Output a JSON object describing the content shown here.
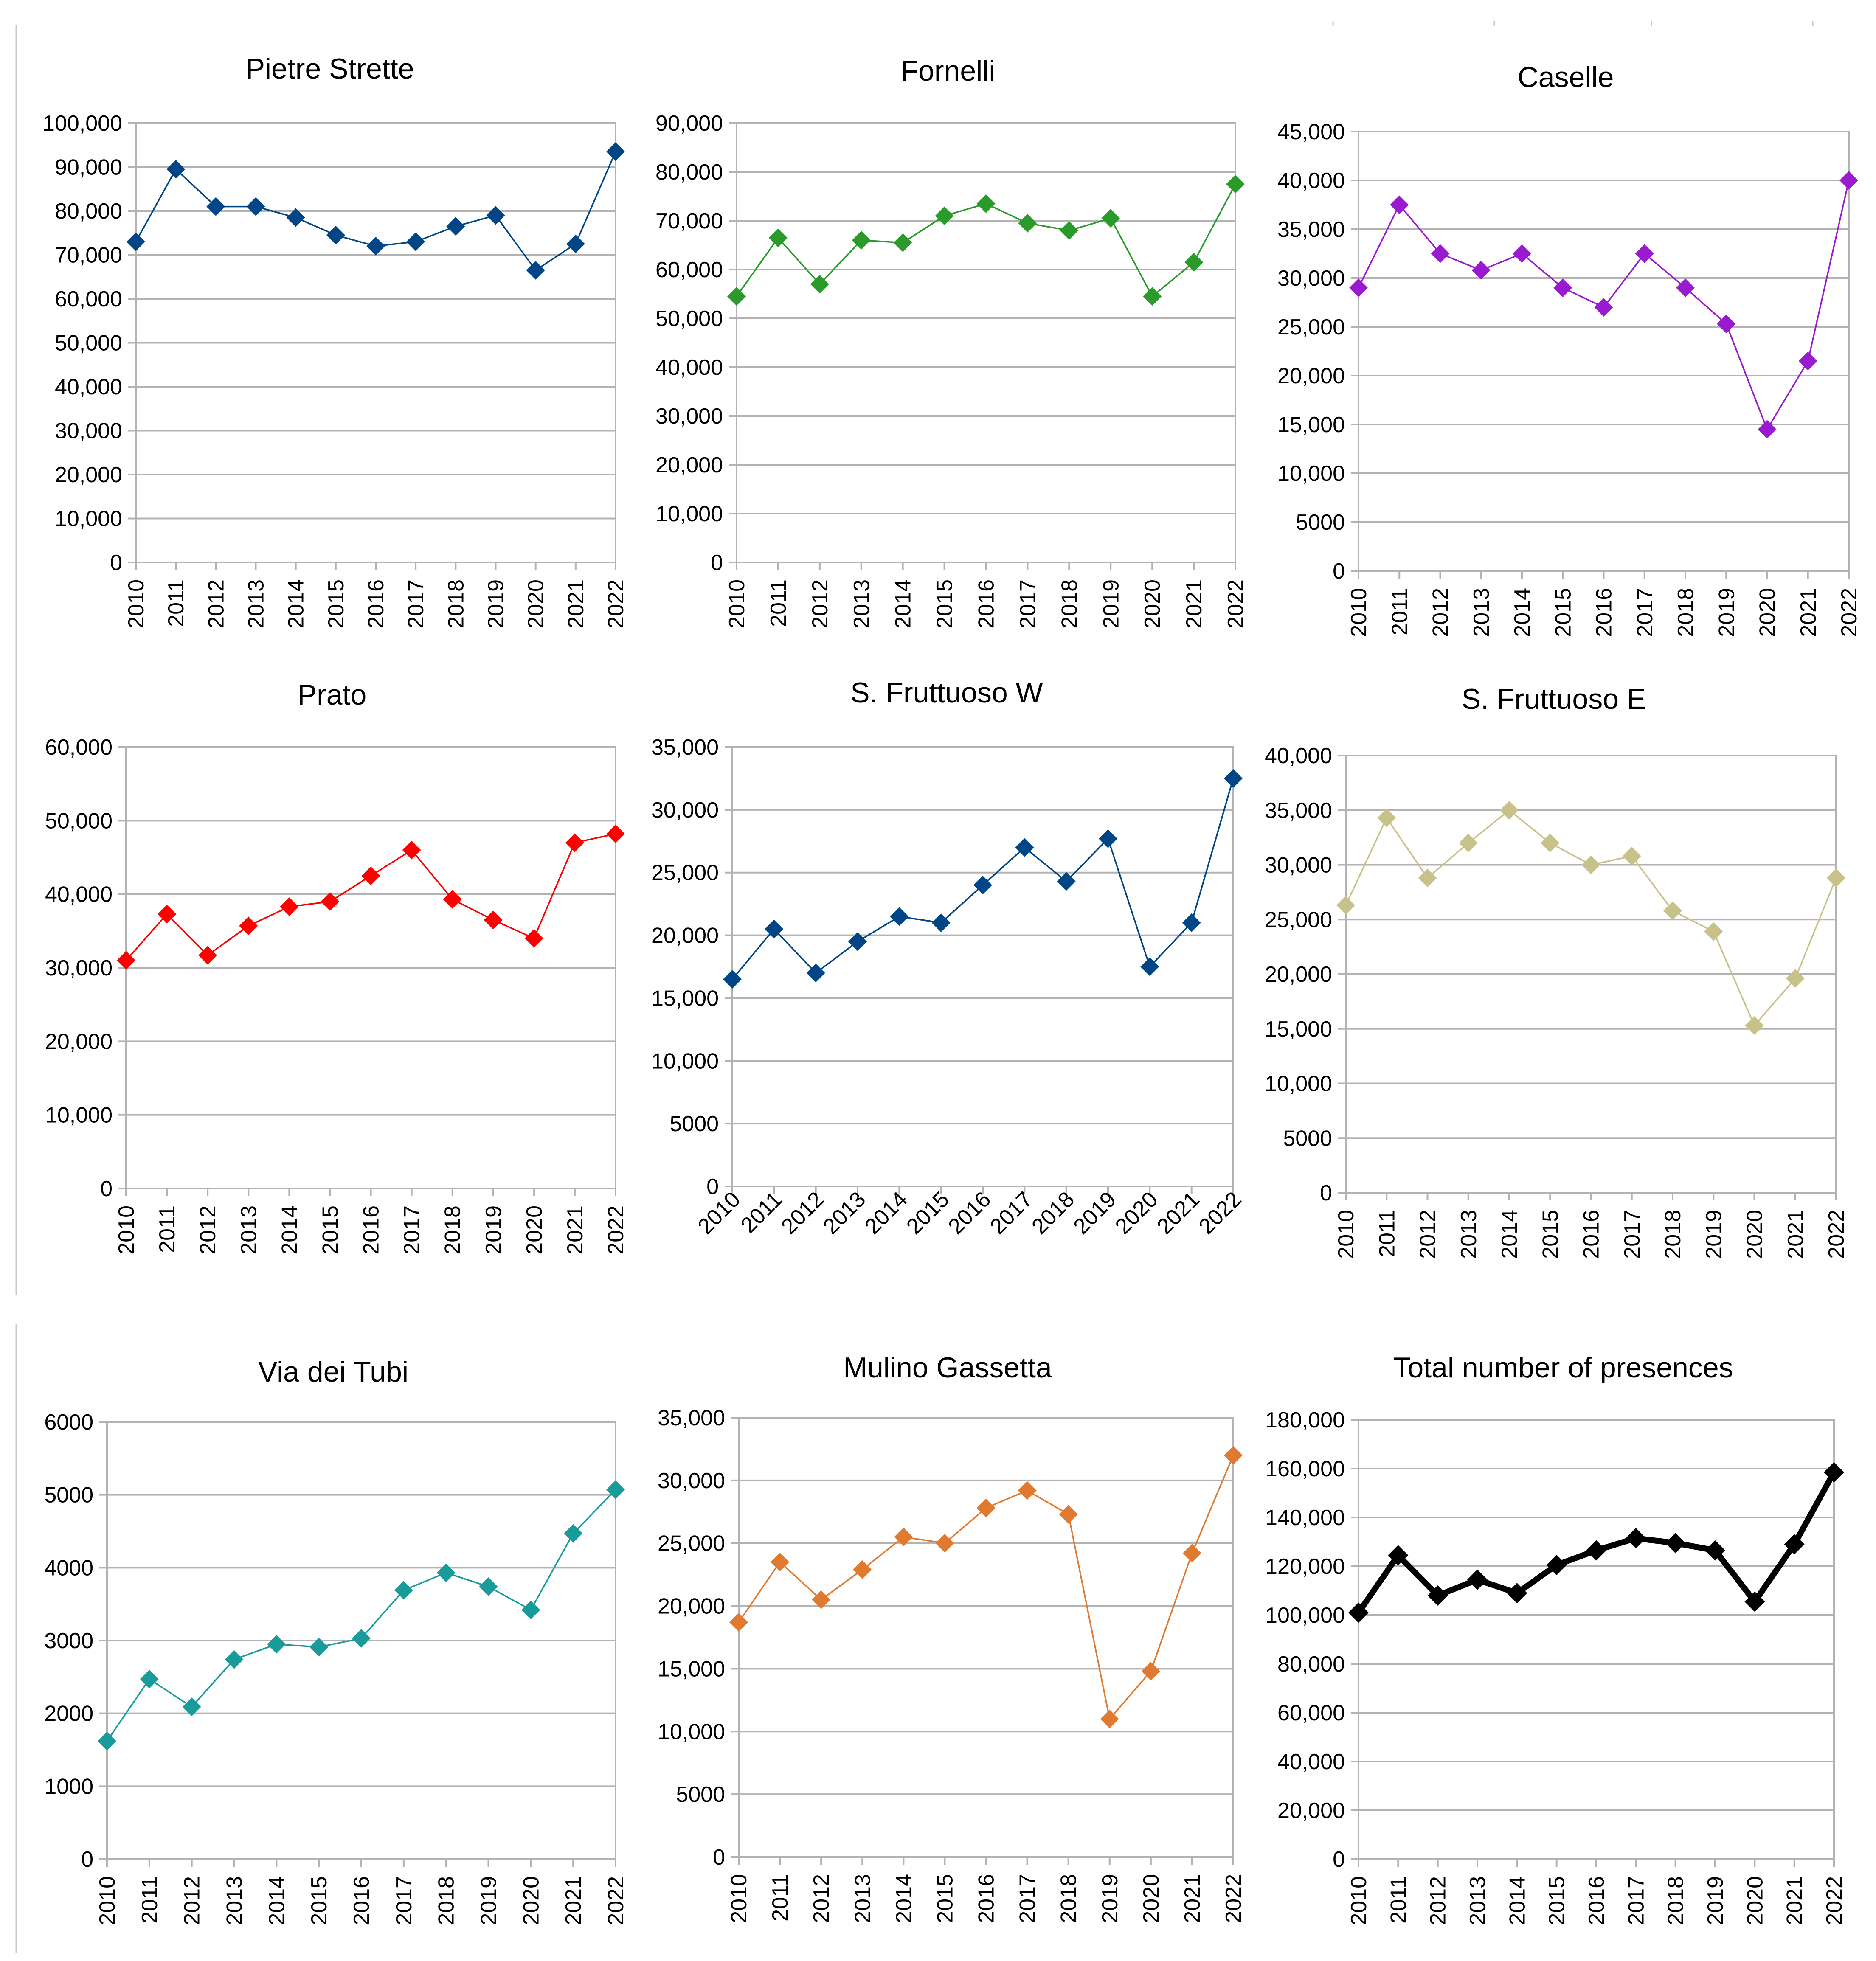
{
  "chart_data": [
    {
      "type": "line",
      "title": "Pietre Strette",
      "color": "#004586",
      "x": [
        "2010",
        "2011",
        "2012",
        "2013",
        "2014",
        "2015",
        "2016",
        "2017",
        "2018",
        "2019",
        "2020",
        "2021",
        "2022"
      ],
      "values": [
        73000,
        89500,
        81000,
        81000,
        78500,
        74500,
        72000,
        73000,
        76500,
        79000,
        66500,
        72500,
        93500
      ],
      "ylim": [
        0,
        100000
      ],
      "yticks": [
        "0",
        "10,000",
        "20,000",
        "30,000",
        "40,000",
        "50,000",
        "60,000",
        "70,000",
        "80,000",
        "90,000",
        "100,000"
      ]
    },
    {
      "type": "line",
      "title": "Fornelli",
      "color": "#2a9a2a",
      "x": [
        "2010",
        "2011",
        "2012",
        "2013",
        "2014",
        "2015",
        "2016",
        "2017",
        "2018",
        "2019",
        "2020",
        "2021",
        "2022"
      ],
      "values": [
        54500,
        66500,
        57000,
        66000,
        65500,
        71000,
        73500,
        69500,
        68000,
        70500,
        54500,
        61500,
        77500
      ],
      "ylim": [
        0,
        90000
      ],
      "yticks": [
        "0",
        "10,000",
        "20,000",
        "30,000",
        "40,000",
        "50,000",
        "60,000",
        "70,000",
        "80,000",
        "90,000"
      ]
    },
    {
      "type": "line",
      "title": "Caselle",
      "color": "#9a1ad0",
      "x": [
        "2010",
        "2011",
        "2012",
        "2013",
        "2014",
        "2015",
        "2016",
        "2017",
        "2018",
        "2019",
        "2020",
        "2021",
        "2022"
      ],
      "values": [
        29000,
        37500,
        32500,
        30800,
        32500,
        29000,
        27000,
        32500,
        29000,
        25300,
        14500,
        21500,
        40000
      ],
      "ylim": [
        0,
        45000
      ],
      "yticks": [
        "0",
        "5000",
        "10,000",
        "15,000",
        "20,000",
        "25,000",
        "30,000",
        "35,000",
        "40,000",
        "45,000"
      ]
    },
    {
      "type": "line",
      "title": "Prato",
      "color": "#ff0000",
      "x": [
        "2010",
        "2011",
        "2012",
        "2013",
        "2014",
        "2015",
        "2016",
        "2017",
        "2018",
        "2019",
        "2020",
        "2021",
        "2022"
      ],
      "values": [
        31000,
        37300,
        31700,
        35700,
        38300,
        39000,
        42500,
        46000,
        39300,
        36500,
        34000,
        47000,
        48200
      ],
      "ylim": [
        0,
        60000
      ],
      "yticks": [
        "0",
        "10,000",
        "20,000",
        "30,000",
        "40,000",
        "50,000",
        "60,000"
      ]
    },
    {
      "type": "line",
      "title": "S. Fruttuoso W",
      "color": "#004586",
      "x": [
        "2010",
        "2011",
        "2012",
        "2013",
        "2014",
        "2015",
        "2016",
        "2017",
        "2018",
        "2019",
        "2020",
        "2021",
        "2022"
      ],
      "values": [
        16500,
        20500,
        17000,
        19500,
        21500,
        21000,
        24000,
        27000,
        24300,
        27700,
        17500,
        21000,
        32500
      ],
      "ylim": [
        0,
        35000
      ],
      "yticks": [
        "0",
        "5000",
        "10,000",
        "15,000",
        "20,000",
        "25,000",
        "30,000",
        "35,000"
      ]
    },
    {
      "type": "line",
      "title": "S. Fruttuoso E",
      "color": "#c8c28a",
      "x": [
        "2010",
        "2011",
        "2012",
        "2013",
        "2014",
        "2015",
        "2016",
        "2017",
        "2018",
        "2019",
        "2020",
        "2021",
        "2022"
      ],
      "values": [
        26300,
        34300,
        28800,
        32000,
        35000,
        32000,
        30000,
        30800,
        25800,
        23900,
        15300,
        19600,
        28800
      ],
      "ylim": [
        0,
        40000
      ],
      "yticks": [
        "0",
        "5000",
        "10,000",
        "15,000",
        "20,000",
        "25,000",
        "30,000",
        "35,000",
        "40,000"
      ]
    },
    {
      "type": "line",
      "title": "Via dei Tubi",
      "color": "#1a9b9b",
      "x": [
        "2010",
        "2011",
        "2012",
        "2013",
        "2014",
        "2015",
        "2016",
        "2017",
        "2018",
        "2019",
        "2020",
        "2021",
        "2022"
      ],
      "values": [
        1620,
        2470,
        2090,
        2740,
        2950,
        2910,
        3030,
        3690,
        3930,
        3740,
        3420,
        4470,
        5070
      ],
      "ylim": [
        0,
        6000
      ],
      "yticks": [
        "0",
        "1000",
        "2000",
        "3000",
        "4000",
        "5000",
        "6000"
      ]
    },
    {
      "type": "line",
      "title": "Mulino Gassetta",
      "color": "#e07a30",
      "x": [
        "2010",
        "2011",
        "2012",
        "2013",
        "2014",
        "2015",
        "2016",
        "2017",
        "2018",
        "2019",
        "2020",
        "2021",
        "2022"
      ],
      "values": [
        18700,
        23500,
        20500,
        22900,
        25500,
        25000,
        27800,
        29200,
        27300,
        11000,
        14800,
        24200,
        32000
      ],
      "ylim": [
        0,
        35000
      ],
      "yticks": [
        "0",
        "5000",
        "10,000",
        "15,000",
        "20,000",
        "25,000",
        "30,000",
        "35,000"
      ]
    },
    {
      "type": "line",
      "title": "Total number of presences",
      "color": "#000000",
      "x": [
        "2010",
        "2011",
        "2012",
        "2013",
        "2014",
        "2015",
        "2016",
        "2017",
        "2018",
        "2019",
        "2020",
        "2021",
        "2022"
      ],
      "values": [
        101000,
        124500,
        108000,
        114500,
        109000,
        120500,
        126500,
        131500,
        129500,
        126500,
        105500,
        129000,
        158500
      ],
      "ylim": [
        0,
        180000
      ],
      "yticks": [
        "0",
        "20,000",
        "40,000",
        "60,000",
        "80,000",
        "100,000",
        "120,000",
        "140,000",
        "160,000",
        "180,000"
      ]
    }
  ]
}
